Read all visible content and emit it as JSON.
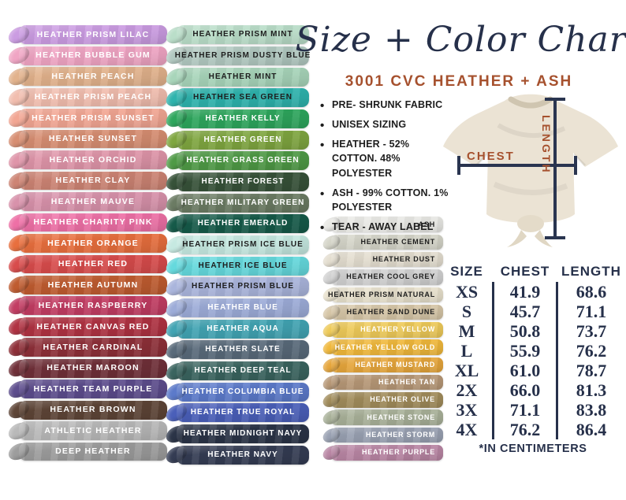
{
  "title": "Size + Color Chart",
  "subtitle": "3001 CVC HEATHER + ASH",
  "bullets": [
    "PRE- SHRUNK FABRIC",
    "UNISEX SIZING",
    "HEATHER - 52% COTTON. 48% POLYESTER",
    "ASH -  99% COTTON. 1% POLYESTER",
    "TEAR - AWAY LABEL"
  ],
  "diagram": {
    "chest_label": "CHEST",
    "length_label": "LENGTH"
  },
  "size_table": {
    "headers": [
      "SIZE",
      "CHEST",
      "LENGTH"
    ],
    "rows": [
      {
        "size": "XS",
        "chest": "41.9",
        "length": "68.6"
      },
      {
        "size": "S",
        "chest": "45.7",
        "length": "71.1"
      },
      {
        "size": "M",
        "chest": "50.8",
        "length": "73.7"
      },
      {
        "size": "L",
        "chest": "55.9",
        "length": "76.2"
      },
      {
        "size": "XL",
        "chest": "61.0",
        "length": "78.7"
      },
      {
        "size": "2X",
        "chest": "66.0",
        "length": "81.3"
      },
      {
        "size": "3X",
        "chest": "71.1",
        "length": "83.8"
      },
      {
        "size": "4X",
        "chest": "76.2",
        "length": "86.4"
      }
    ],
    "footnote": "*IN CENTIMETERS"
  },
  "colors": {
    "accent_rust": "#a6512e",
    "navy": "#26304a",
    "shirt_cream": "#ebe3d4"
  },
  "swatch_columns": {
    "left": {
      "items": [
        {
          "label": "HEATHER PRISM LILAC",
          "bg": "#cb9ce2",
          "fg": "#ffffff"
        },
        {
          "label": "HEATHER BUBBLE GUM",
          "bg": "#f0a5c4",
          "fg": "#ffffff"
        },
        {
          "label": "HEATHER PEACH",
          "bg": "#e2b28c",
          "fg": "#ffffff"
        },
        {
          "label": "HEATHER PRISM PEACH",
          "bg": "#f1bdae",
          "fg": "#ffffff"
        },
        {
          "label": "HEATHER PRISM SUNSET",
          "bg": "#f2a693",
          "fg": "#ffffff"
        },
        {
          "label": "HEATHER SUNSET",
          "bg": "#d78e72",
          "fg": "#ffffff"
        },
        {
          "label": "HEATHER ORCHID",
          "bg": "#df95a9",
          "fg": "#ffffff"
        },
        {
          "label": "HEATHER CLAY",
          "bg": "#cd8474",
          "fg": "#ffffff"
        },
        {
          "label": "HEATHER MAUVE",
          "bg": "#d892ab",
          "fg": "#ffffff"
        },
        {
          "label": "HEATHER CHARITY PINK",
          "bg": "#ee70a6",
          "fg": "#ffffff"
        },
        {
          "label": "HEATHER ORANGE",
          "bg": "#e86f3e",
          "fg": "#ffffff"
        },
        {
          "label": "HEATHER RED",
          "bg": "#d84c4c",
          "fg": "#ffffff"
        },
        {
          "label": "HEATHER AUTUMN",
          "bg": "#bf5c30",
          "fg": "#ffffff"
        },
        {
          "label": "HEATHER RASPBERRY",
          "bg": "#c23d63",
          "fg": "#ffffff"
        },
        {
          "label": "HEATHER CANVAS RED",
          "bg": "#b03343",
          "fg": "#ffffff"
        },
        {
          "label": "HEATHER CARDINAL",
          "bg": "#8e3039",
          "fg": "#ffffff"
        },
        {
          "label": "HEATHER MAROON",
          "bg": "#703039",
          "fg": "#ffffff"
        },
        {
          "label": "HEATHER TEAM PURPLE",
          "bg": "#5d4d8d",
          "fg": "#ffffff"
        },
        {
          "label": "HEATHER BROWN",
          "bg": "#5e4537",
          "fg": "#ffffff"
        },
        {
          "label": "ATHLETIC HEATHER",
          "bg": "#b9b9b9",
          "fg": "#ffffff"
        },
        {
          "label": "DEEP HEATHER",
          "bg": "#9d9d9d",
          "fg": "#ffffff"
        }
      ]
    },
    "middle": {
      "items": [
        {
          "label": "HEATHER PRISM MINT",
          "bg": "#badec9",
          "fg": "#1e1e1e"
        },
        {
          "label": "HEATHER PRISM DUSTY BLUE",
          "bg": "#b2c9c1",
          "fg": "#1e1e1e"
        },
        {
          "label": "HEATHER MINT",
          "bg": "#a8d5ba",
          "fg": "#1e1e1e"
        },
        {
          "label": "HEATHER SEA GREEN",
          "bg": "#2eb3ad",
          "fg": "#1e1e1e"
        },
        {
          "label": "HEATHER KELLY",
          "bg": "#2ea65d",
          "fg": "#ffffff"
        },
        {
          "label": "HEATHER GREEN",
          "bg": "#7fa640",
          "fg": "#ffffff"
        },
        {
          "label": "HEATHER GRASS GREEN",
          "bg": "#4f9a46",
          "fg": "#ffffff"
        },
        {
          "label": "HEATHER FOREST",
          "bg": "#375239",
          "fg": "#ffffff"
        },
        {
          "label": "HEATHER MILITARY GREEN",
          "bg": "#6b7b63",
          "fg": "#ffffff"
        },
        {
          "label": "HEATHER EMERALD",
          "bg": "#165a49",
          "fg": "#ffffff"
        },
        {
          "label": "HEATHER PRISM ICE BLUE",
          "bg": "#c6e9e1",
          "fg": "#1e1e1e"
        },
        {
          "label": "HEATHER ICE BLUE",
          "bg": "#65d9dd",
          "fg": "#1e1e1e"
        },
        {
          "label": "HEATHER PRISM BLUE",
          "bg": "#aab5dc",
          "fg": "#1e1e1e"
        },
        {
          "label": "HEATHER BLUE",
          "bg": "#9dacd8",
          "fg": "#ffffff"
        },
        {
          "label": "HEATHER AQUA",
          "bg": "#42a4b3",
          "fg": "#ffffff"
        },
        {
          "label": "HEATHER SLATE",
          "bg": "#596a7a",
          "fg": "#ffffff"
        },
        {
          "label": "HEATHER DEEP TEAL",
          "bg": "#3a645f",
          "fg": "#ffffff"
        },
        {
          "label": "HEATHER COLUMBIA BLUE",
          "bg": "#5c7aca",
          "fg": "#ffffff"
        },
        {
          "label": "HEATHER TRUE ROYAL",
          "bg": "#4a5fb9",
          "fg": "#ffffff"
        },
        {
          "label": "HEATHER MIDNIGHT NAVY",
          "bg": "#2b3447",
          "fg": "#ffffff"
        },
        {
          "label": "HEATHER NAVY",
          "bg": "#343c53",
          "fg": "#ffffff"
        }
      ]
    },
    "right": {
      "items": [
        {
          "label": "ASH",
          "bg": "#e9e9e5",
          "fg": "#1e1e1e"
        },
        {
          "label": "HEATHER CEMENT",
          "bg": "#d5d5c9",
          "fg": "#1e1e1e"
        },
        {
          "label": "HEATHER DUST",
          "bg": "#e4ded0",
          "fg": "#1e1e1e"
        },
        {
          "label": "HEATHER COOL GREY",
          "bg": "#d1d1d1",
          "fg": "#1e1e1e"
        },
        {
          "label": "HEATHER PRISM NATURAL",
          "bg": "#e8e1cd",
          "fg": "#1e1e1e"
        },
        {
          "label": "HEATHER SAND DUNE",
          "bg": "#d6c6a7",
          "fg": "#1e1e1e"
        },
        {
          "label": "HEATHER YELLOW",
          "bg": "#eeca59",
          "fg": "#ffffff"
        },
        {
          "label": "HEATHER YELLOW GOLD",
          "bg": "#f0b83b",
          "fg": "#ffffff"
        },
        {
          "label": "HEATHER MUSTARD",
          "bg": "#e6a63c",
          "fg": "#ffffff"
        },
        {
          "label": "HEATHER TAN",
          "bg": "#b79877",
          "fg": "#ffffff"
        },
        {
          "label": "HEATHER OLIVE",
          "bg": "#a18c5b",
          "fg": "#ffffff"
        },
        {
          "label": "HEATHER STONE",
          "bg": "#a9b199",
          "fg": "#ffffff"
        },
        {
          "label": "HEATHER STORM",
          "bg": "#99a1b2",
          "fg": "#ffffff"
        },
        {
          "label": "HEATHER PURPLE",
          "bg": "#b986a4",
          "fg": "#ffffff"
        }
      ]
    }
  }
}
